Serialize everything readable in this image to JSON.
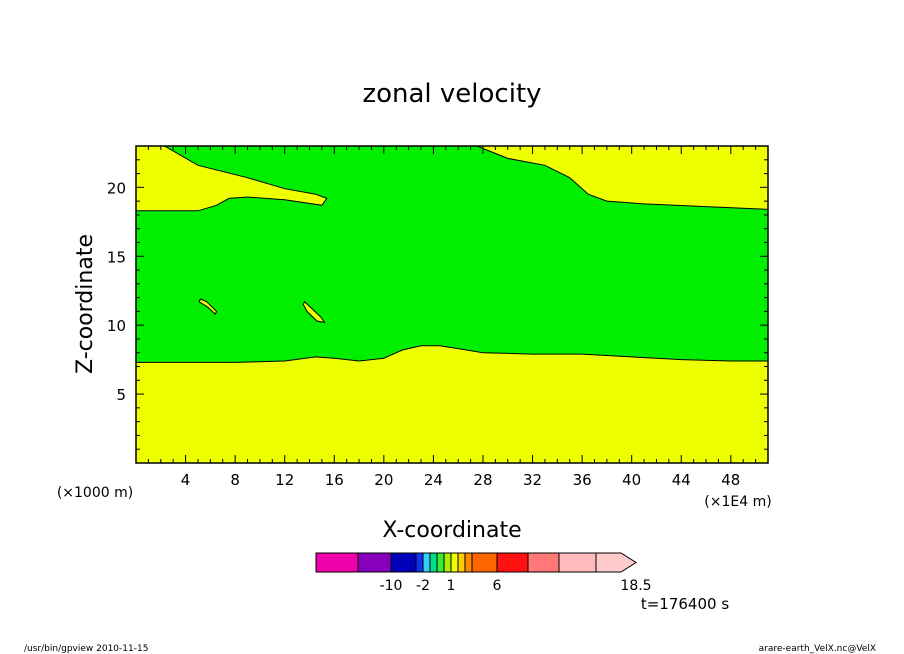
{
  "chart_data": {
    "type": "filled-contour",
    "title": "zonal velocity",
    "xlabel": "X-coordinate",
    "ylabel": "Z-coordinate",
    "x_unit_left": "(×1000 m)",
    "x_unit_right": "(×1E4 m)",
    "xlim": [
      0,
      51
    ],
    "ylim": [
      0,
      23
    ],
    "x_ticks": [
      4,
      8,
      12,
      16,
      20,
      24,
      28,
      32,
      36,
      40,
      44,
      48
    ],
    "y_ticks": [
      5,
      10,
      15,
      20
    ],
    "time_label": "t=176400 s",
    "regions": [
      {
        "level": "1–2",
        "color": "#eeff00",
        "where": "background (above and below the green band)"
      },
      {
        "level": "-2–1",
        "color": "#00ee00",
        "boundary_lower": [
          [
            0,
            7.3
          ],
          [
            8,
            7.3
          ],
          [
            12,
            7.4
          ],
          [
            14.5,
            7.7
          ],
          [
            16,
            7.6
          ],
          [
            18,
            7.4
          ],
          [
            20,
            7.6
          ],
          [
            21.5,
            8.2
          ],
          [
            23,
            8.5
          ],
          [
            24.5,
            8.5
          ],
          [
            26,
            8.3
          ],
          [
            28,
            8.0
          ],
          [
            32,
            7.9
          ],
          [
            36,
            7.9
          ],
          [
            40,
            7.7
          ],
          [
            44,
            7.5
          ],
          [
            48,
            7.4
          ],
          [
            51,
            7.4
          ]
        ],
        "boundary_upper": [
          [
            0,
            18.3
          ],
          [
            5,
            18.3
          ],
          [
            6.5,
            18.7
          ],
          [
            7.5,
            19.2
          ],
          [
            9,
            19.3
          ],
          [
            12,
            19.1
          ],
          [
            15,
            18.7
          ],
          [
            15.4,
            19.2
          ],
          [
            14.5,
            19.5
          ],
          [
            12,
            19.9
          ],
          [
            9,
            20.7
          ],
          [
            5,
            21.6
          ],
          [
            2.3,
            23
          ],
          [
            27.5,
            23
          ],
          [
            30,
            22.1
          ],
          [
            33,
            21.6
          ],
          [
            35,
            20.7
          ],
          [
            36.5,
            19.5
          ],
          [
            38,
            19.0
          ],
          [
            41,
            18.8
          ],
          [
            46,
            18.6
          ],
          [
            51,
            18.4
          ]
        ]
      },
      {
        "level": "1–2",
        "color": "#eeff00",
        "where": "small island near x=5.5, z=11.4",
        "outline": [
          [
            5.2,
            11.9
          ],
          [
            5.7,
            11.7
          ],
          [
            6.5,
            11.0
          ],
          [
            6.4,
            10.8
          ],
          [
            5.8,
            11.3
          ],
          [
            5.1,
            11.7
          ]
        ]
      },
      {
        "level": "1–2",
        "color": "#eeff00",
        "where": "small island near x=14, z=11",
        "outline": [
          [
            13.6,
            11.7
          ],
          [
            14.2,
            11.2
          ],
          [
            14.9,
            10.6
          ],
          [
            15.2,
            10.2
          ],
          [
            14.6,
            10.3
          ],
          [
            13.8,
            11.0
          ],
          [
            13.5,
            11.5
          ]
        ]
      }
    ],
    "colorbar": {
      "colors": [
        "#ee00aa",
        "#8800bb",
        "#0000bb",
        "#1133ee",
        "#33ccff",
        "#00dd88",
        "#33ee33",
        "#aaee00",
        "#eeff00",
        "#ffcc00",
        "#ff8800",
        "#ff6600",
        "#ff1111",
        "#ff7777",
        "#ffbbbb",
        "#ffcccc"
      ],
      "widths": [
        42,
        33,
        25,
        7,
        7,
        7,
        7,
        7,
        7,
        7,
        7,
        25,
        31,
        31,
        37,
        40
      ],
      "labels": [
        "-10",
        "-2",
        "1",
        "6",
        "18.5"
      ],
      "label_positions": [
        2,
        4,
        8,
        12,
        16
      ]
    }
  },
  "footer": {
    "left": "/usr/bin/gpview   2010-11-15",
    "right": "arare-earth_VelX.nc@VelX"
  }
}
